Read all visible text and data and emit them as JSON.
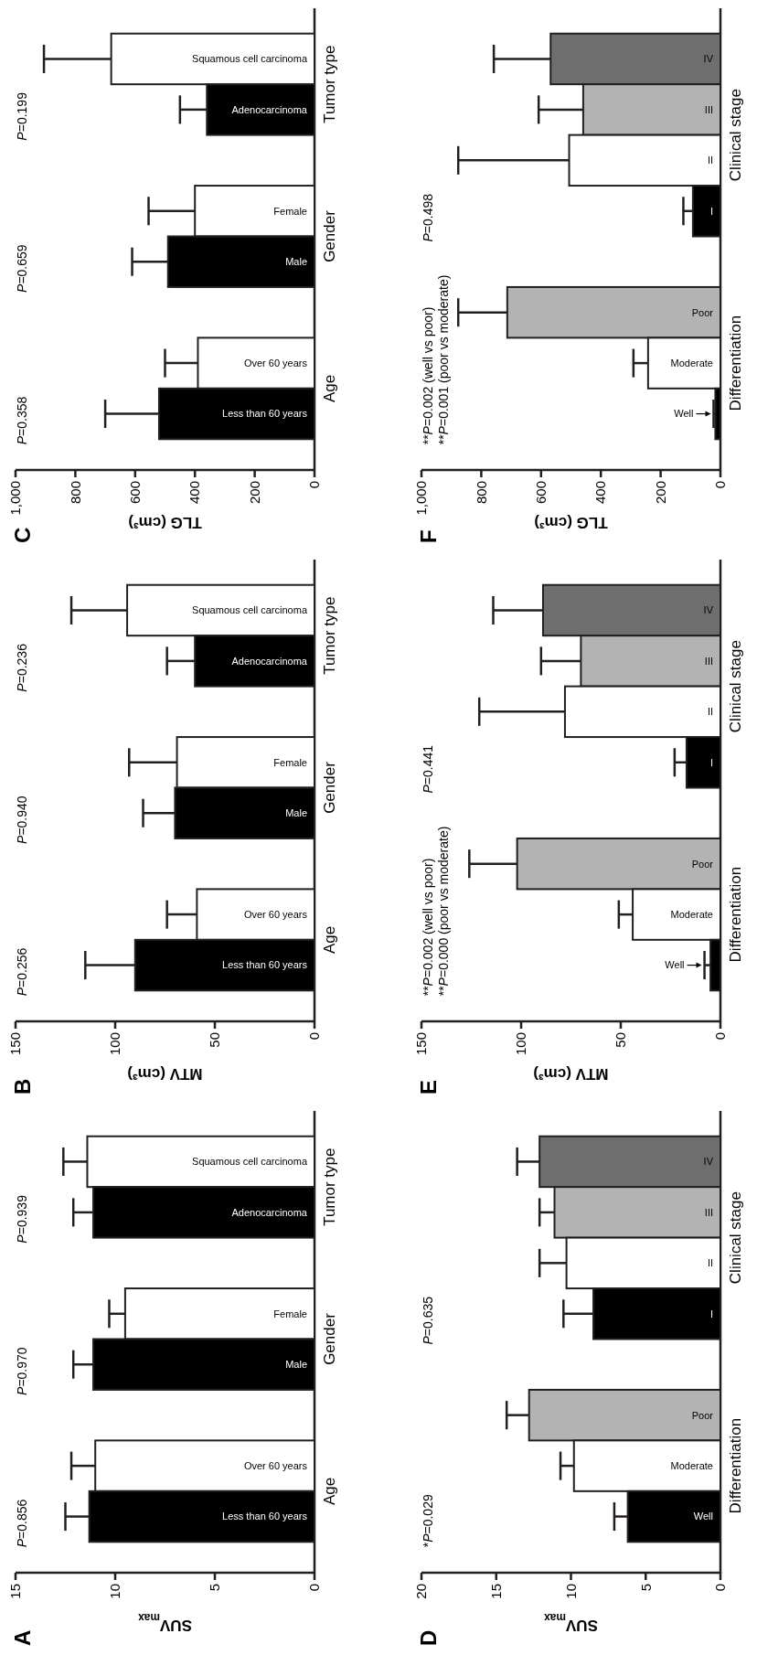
{
  "chart_data": [
    {
      "type": "bar",
      "orientation": "horizontal",
      "title": "A",
      "xlabel": "SUV$_{max}$",
      "categories": [
        "Squamous cell carcinoma",
        "Adenocarcinoma",
        null,
        "Female",
        "Male",
        null,
        "Over 60 years",
        "Less than 60 years"
      ],
      "values": [
        11.4,
        11.1,
        null,
        9.5,
        11.1,
        null,
        11.0,
        11.3
      ],
      "colors": [
        "#ffffff",
        "#000000",
        null,
        "#ffffff",
        "#000000",
        null,
        "#ffffff",
        "#000000"
      ],
      "errors": [
        [
          11.4,
          12.6
        ],
        [
          11.1,
          12.1
        ],
        null,
        [
          9.5,
          10.3
        ],
        [
          11.1,
          12.1
        ],
        null,
        [
          11.0,
          12.2
        ],
        [
          11.3,
          12.5
        ]
      ],
      "xlim": [
        15,
        0
      ],
      "xticks": [
        15,
        10,
        5,
        0
      ],
      "annotations": [
        "Tumor type",
        "Gender",
        "Age",
        "P=0.939",
        "P=0.970",
        "P=0.856"
      ]
    },
    {
      "type": "bar",
      "orientation": "horizontal",
      "title": "B",
      "xlabel": "MTV (cm³)",
      "categories": [
        "Squamous cell carcinoma",
        "Adenocarcinoma",
        null,
        "Female",
        "Male",
        null,
        "Over 60 years",
        "Less than 60 years"
      ],
      "values": [
        94,
        60,
        null,
        69,
        70,
        null,
        59,
        90
      ],
      "colors": [
        "#ffffff",
        "#000000",
        null,
        "#ffffff",
        "#000000",
        null,
        "#ffffff",
        "#000000"
      ],
      "errors": [
        [
          94,
          122
        ],
        [
          60,
          74
        ],
        null,
        [
          69,
          93
        ],
        [
          70,
          86
        ],
        null,
        [
          59,
          74
        ],
        [
          90,
          115
        ]
      ],
      "xlim": [
        150,
        0
      ],
      "xticks": [
        150,
        100,
        50,
        0
      ],
      "annotations": [
        "Tumor type",
        "Gender",
        "Age",
        "P=0.236",
        "P=0.940",
        "P=0.256"
      ]
    },
    {
      "type": "bar",
      "orientation": "horizontal",
      "title": "C",
      "xlabel": "TLG (cm³)",
      "categories": [
        "Squamous cell carcinoma",
        "Adenocarcinoma",
        null,
        "Female",
        "Male",
        null,
        "Over 60 years",
        "Less than 60 years"
      ],
      "values": [
        680,
        360,
        null,
        400,
        490,
        null,
        390,
        520
      ],
      "colors": [
        "#ffffff",
        "#000000",
        null,
        "#ffffff",
        "#000000",
        null,
        "#ffffff",
        "#000000"
      ],
      "errors": [
        [
          680,
          905
        ],
        [
          360,
          450
        ],
        null,
        [
          400,
          555
        ],
        [
          490,
          610
        ],
        null,
        [
          390,
          500
        ],
        [
          520,
          700
        ]
      ],
      "xlim": [
        1000,
        0
      ],
      "xticks": [
        {
          "value": 1000,
          "label": "1,000"
        },
        800,
        600,
        400,
        200,
        0
      ],
      "annotations": [
        "Tumor type",
        "Gender",
        "Age",
        "P=0.199",
        "P=0.659",
        "P=0.358"
      ]
    },
    {
      "type": "bar",
      "orientation": "horizontal",
      "title": "D",
      "xlabel": "SUV$_{max}$",
      "categories": [
        "IV",
        "III",
        "II",
        "I",
        null,
        "Poor",
        "Moderate",
        "Well"
      ],
      "values": [
        12.1,
        11.1,
        10.3,
        8.5,
        null,
        12.8,
        9.8,
        6.2
      ],
      "colors": [
        "#6e6e6e",
        "#b3b3b3",
        "#ffffff",
        "#000000",
        null,
        "#b3b3b3",
        "#ffffff",
        "#000000"
      ],
      "errors": [
        [
          12.1,
          13.6
        ],
        [
          11.1,
          12.1
        ],
        [
          10.3,
          12.1
        ],
        [
          8.5,
          10.5
        ],
        null,
        [
          12.8,
          14.3
        ],
        [
          9.8,
          10.7
        ],
        [
          6.2,
          7.1
        ]
      ],
      "xlim": [
        20,
        0
      ],
      "xticks": [
        20,
        15,
        10,
        5,
        0
      ],
      "annotations": [
        "Clinical stage",
        "Differentiation",
        "P=0.635",
        "*P=0.029"
      ]
    },
    {
      "type": "bar",
      "orientation": "horizontal",
      "title": "E",
      "xlabel": "MTV (cm³)",
      "categories": [
        "IV",
        "III",
        "II",
        "I",
        null,
        "Poor",
        "Moderate",
        "Well"
      ],
      "values": [
        89,
        70,
        78,
        17,
        null,
        102,
        44,
        5
      ],
      "colors": [
        "#6e6e6e",
        "#b3b3b3",
        "#ffffff",
        "#000000",
        null,
        "#b3b3b3",
        "#ffffff",
        "#000000"
      ],
      "errors": [
        [
          89,
          114
        ],
        [
          70,
          90
        ],
        [
          78,
          121
        ],
        [
          17,
          23
        ],
        null,
        [
          102,
          126
        ],
        [
          44,
          51
        ],
        [
          5,
          8
        ]
      ],
      "xlim": [
        150,
        0
      ],
      "xticks": [
        150,
        100,
        50,
        0
      ],
      "annotations": [
        "Clinical stage",
        "Differentiation",
        "P=0.441",
        "**P=0.002 (well vs poor)\n**P=0.000 (poor vs moderate)"
      ]
    },
    {
      "type": "bar",
      "orientation": "horizontal",
      "title": "F",
      "xlabel": "TLG (cm³)",
      "categories": [
        "IV",
        "III",
        "II",
        "I",
        null,
        "Poor",
        "Moderate",
        "Well"
      ],
      "values": [
        568,
        459,
        506,
        92,
        null,
        713,
        242,
        17
      ],
      "colors": [
        "#6e6e6e",
        "#b3b3b3",
        "#ffffff",
        "#000000",
        null,
        "#b3b3b3",
        "#ffffff",
        "#000000"
      ],
      "errors": [
        [
          568,
          758
        ],
        [
          459,
          608
        ],
        [
          506,
          877
        ],
        [
          92,
          124
        ],
        null,
        [
          713,
          877
        ],
        [
          242,
          291
        ],
        [
          17,
          23
        ]
      ],
      "xlim": [
        1000,
        0
      ],
      "xticks": [
        {
          "value": 1000,
          "label": "1,000"
        },
        800,
        600,
        400,
        200,
        0
      ],
      "annotations": [
        "Clinical stage",
        "Differentiation",
        "P=0.498",
        "**P=0.002 (well vs poor)\n**P=0.001 (poor vs moderate)"
      ]
    }
  ]
}
